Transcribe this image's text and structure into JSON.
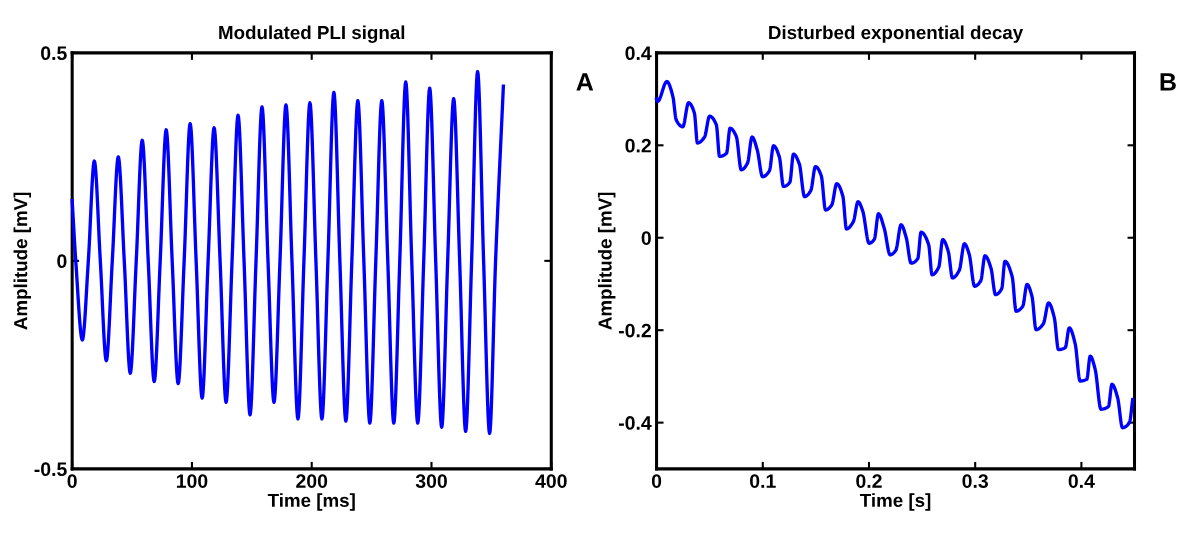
{
  "chart_data": [
    {
      "type": "line",
      "title": "Modulated PLI signal",
      "xlabel": "Time [ms]",
      "ylabel": "Amplitude [mV]",
      "annotations": [
        "A"
      ],
      "xlim": [
        0,
        400
      ],
      "xticks": [
        0,
        100,
        200,
        300,
        400
      ],
      "ylim": [
        -0.5,
        0.5
      ],
      "yticks": [
        {
          "value": -0.5,
          "label": "-0.5"
        },
        0,
        0.5
      ],
      "series": [
        {
          "color": "#0000ff",
          "x": [
            0,
            3,
            8.5,
            13.5,
            18.5,
            23.5,
            28.5,
            33.5,
            38.5,
            43.5,
            48.5,
            53.5,
            58.5,
            63.5,
            68.5,
            73.5,
            78.5,
            83.5,
            88.5,
            93.5,
            98.5,
            103.5,
            108.5,
            113.5,
            118.5,
            123.5,
            128.5,
            133.5,
            138.5,
            143.5,
            148.5,
            153.5,
            158.5,
            163.5,
            168.5,
            173.5,
            178.5,
            183.5,
            188.5,
            193.5,
            198.5,
            203.5,
            208.5,
            213.5,
            218.5,
            223.5,
            228.5,
            233.5,
            238.5,
            243.5,
            248.5,
            253.5,
            258.5,
            263.5,
            268.5,
            273.5,
            278.5,
            283.5,
            288.5,
            293.5,
            298.5,
            303.5,
            308.5,
            313.5,
            318.5,
            323.5,
            328.5,
            333.5,
            338.5,
            343.5,
            348.5,
            353.5,
            360
          ],
          "values": [
            0.145,
            0,
            -0.19,
            0,
            0.24,
            0,
            -0.24,
            0,
            0.25,
            0,
            -0.27,
            0,
            0.29,
            0,
            -0.29,
            0,
            0.315,
            0,
            -0.295,
            0,
            0.33,
            0,
            -0.33,
            0,
            0.32,
            0,
            -0.34,
            0,
            0.35,
            0,
            -0.37,
            0,
            0.37,
            0,
            -0.34,
            0,
            0.375,
            0,
            -0.38,
            0,
            0.38,
            0,
            -0.38,
            0,
            0.405,
            0,
            -0.385,
            0,
            0.385,
            0,
            -0.39,
            0,
            0.385,
            0,
            -0.39,
            0,
            0.43,
            0,
            -0.39,
            0,
            0.415,
            0,
            -0.4,
            0,
            0.39,
            0,
            -0.41,
            0,
            0.455,
            0,
            -0.415,
            0,
            0.42
          ]
        }
      ]
    },
    {
      "type": "line",
      "title": "Disturbed exponential decay",
      "xlabel": "Time [s]",
      "ylabel": "Amplitude [mV]",
      "annotations": [
        "B"
      ],
      "xlim": [
        0,
        0.45
      ],
      "xticks": [
        0,
        0.1,
        0.2,
        0.3,
        0.4
      ],
      "ylim": [
        -0.5,
        0.4
      ],
      "yticks": [
        {
          "value": -0.4,
          "label": "-0.4"
        },
        {
          "value": -0.2,
          "label": "-0.2"
        },
        0,
        0.2,
        0.4
      ],
      "series": [
        {
          "color": "#0000ff",
          "x": [
            0,
            0.001,
            0.0097,
            0.0154,
            0.0185,
            0.0247,
            0.0301,
            0.0356,
            0.0385,
            0.0452,
            0.0499,
            0.0563,
            0.0593,
            0.0659,
            0.0692,
            0.0751,
            0.0797,
            0.0857,
            0.0899,
            0.0948,
            0.0998,
            0.1063,
            0.1101,
            0.1156,
            0.1195,
            0.1255,
            0.1289,
            0.1344,
            0.1393,
            0.1452,
            0.1496,
            0.1551,
            0.1591,
            0.165,
            0.1696,
            0.1754,
            0.1788,
            0.1853,
            0.1897,
            0.1941,
            0.2001,
            0.2051,
            0.2089,
            0.2144,
            0.2199,
            0.2253,
            0.2302,
            0.2351,
            0.2396,
            0.246,
            0.249,
            0.2562,
            0.2594,
            0.2658,
            0.2694,
            0.2747,
            0.2786,
            0.2851,
            0.2898,
            0.2944,
            0.2994,
            0.3053,
            0.3092,
            0.3149,
            0.3191,
            0.325,
            0.328,
            0.3349,
            0.3385,
            0.3448,
            0.3488,
            0.3535,
            0.3573,
            0.3642,
            0.3691,
            0.3745,
            0.3784,
            0.3848,
            0.3886,
            0.3942,
            0.3987,
            0.4051,
            0.4083,
            0.413,
            0.4184,
            0.4255,
            0.4288,
            0.4341,
            0.4387,
            0.4452,
            0.4483
          ],
          "values": [
            0.3,
            0.295,
            0.338,
            0.305,
            0.255,
            0.24,
            0.292,
            0.27,
            0.205,
            0.218,
            0.263,
            0.244,
            0.176,
            0.183,
            0.237,
            0.219,
            0.147,
            0.162,
            0.218,
            0.19,
            0.132,
            0.145,
            0.199,
            0.175,
            0.111,
            0.12,
            0.181,
            0.16,
            0.089,
            0.102,
            0.154,
            0.134,
            0.06,
            0.071,
            0.117,
            0.09,
            0.019,
            0.035,
            0.078,
            0.058,
            -0.012,
            -0.003,
            0.052,
            0.02,
            -0.037,
            -0.027,
            0.028,
            0.0,
            -0.055,
            -0.045,
            0.012,
            -0.015,
            -0.08,
            -0.063,
            -0.004,
            -0.03,
            -0.087,
            -0.07,
            -0.013,
            -0.036,
            -0.105,
            -0.093,
            -0.039,
            -0.066,
            -0.123,
            -0.11,
            -0.051,
            -0.085,
            -0.159,
            -0.148,
            -0.101,
            -0.127,
            -0.199,
            -0.186,
            -0.141,
            -0.173,
            -0.242,
            -0.238,
            -0.195,
            -0.23,
            -0.31,
            -0.306,
            -0.256,
            -0.285,
            -0.371,
            -0.365,
            -0.317,
            -0.346,
            -0.411,
            -0.4,
            -0.35
          ]
        }
      ]
    }
  ]
}
